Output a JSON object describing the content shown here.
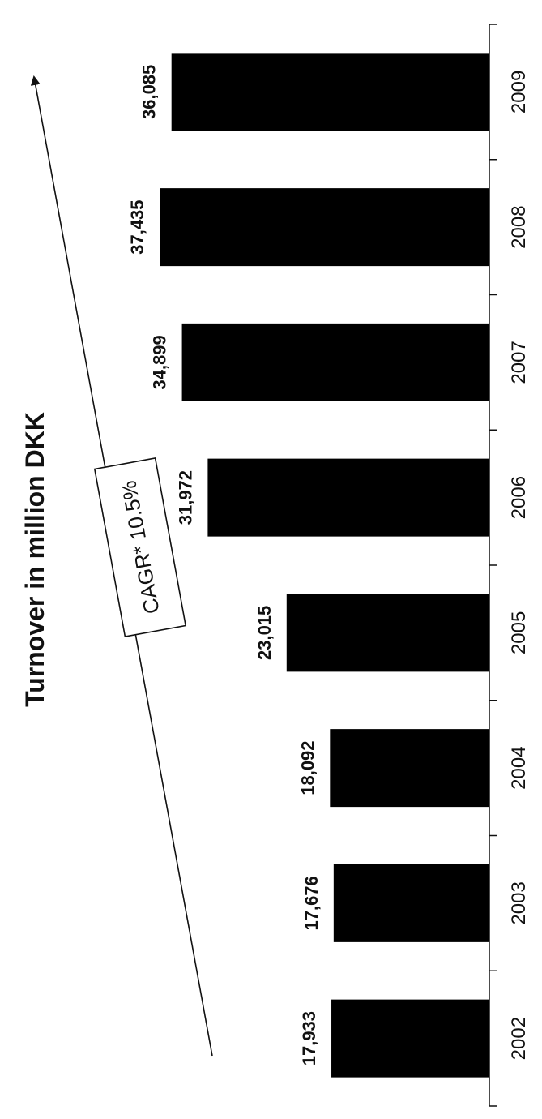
{
  "chart_data": {
    "type": "bar",
    "title": "Turnover in million DKK",
    "categories": [
      "2002",
      "2003",
      "2004",
      "2005",
      "2006",
      "2007",
      "2008",
      "2009"
    ],
    "values": [
      17933,
      17676,
      18092,
      23015,
      31972,
      34899,
      37435,
      36085
    ],
    "value_labels": [
      "17,933",
      "17,676",
      "18,092",
      "23,015",
      "31,972",
      "34,899",
      "37,435",
      "36,085"
    ],
    "annotation": "CAGR* 10.5%",
    "ylim": [
      0,
      41000
    ],
    "orientation": "rotated-90-clockwise",
    "grid": false,
    "bar_color": "#000000"
  }
}
